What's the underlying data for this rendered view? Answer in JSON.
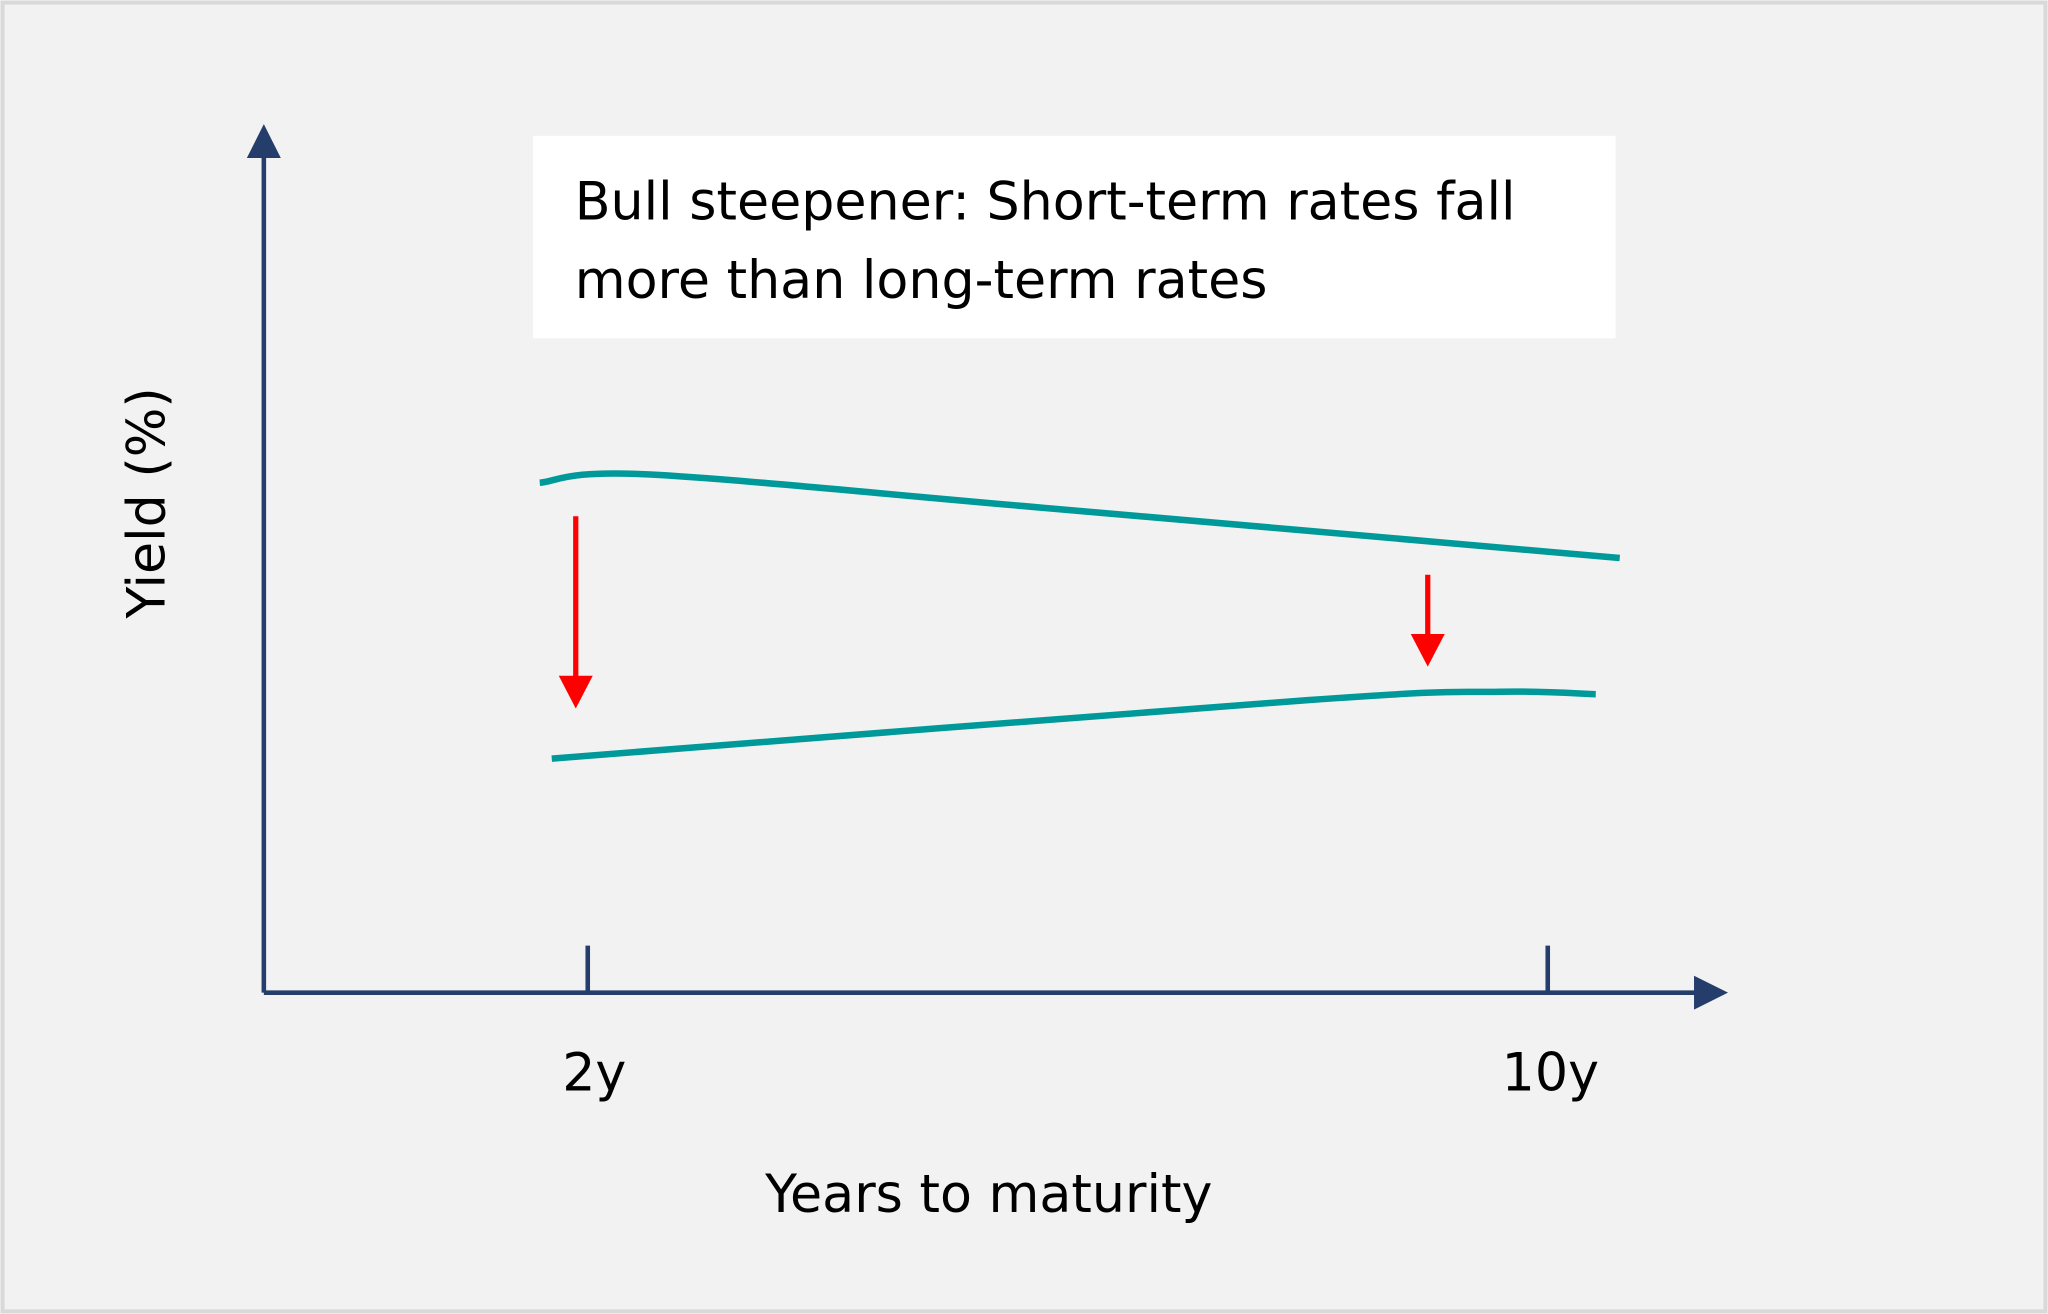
{
  "chart_data": {
    "type": "line",
    "annotation": {
      "line1": "Bull steepener: Short-term rates fall",
      "line2": "more than long-term rates"
    },
    "xlabel": "Years to maturity",
    "ylabel": "Yield (%)",
    "x_ticks": [
      {
        "value": 2,
        "label": "2y"
      },
      {
        "value": 10,
        "label": "10y"
      }
    ],
    "xlim": [
      -0.7,
      11.4
    ],
    "ylim": [
      0,
      10
    ],
    "grid": false,
    "series": [
      {
        "role": "before",
        "color": "#009999",
        "points": [
          [
            1.6,
            6.1
          ],
          [
            2.5,
            6.2
          ],
          [
            5.8,
            5.8
          ],
          [
            10.6,
            5.2
          ]
        ]
      },
      {
        "role": "after",
        "color": "#009999",
        "points": [
          [
            1.7,
            2.8
          ],
          [
            8.0,
            3.5
          ],
          [
            9.6,
            3.6
          ],
          [
            10.4,
            3.57
          ]
        ]
      }
    ],
    "shift_arrows": [
      {
        "x": 1.9,
        "from": 5.7,
        "to": 3.4,
        "color": "#ff0000"
      },
      {
        "x": 9.0,
        "from": 5.0,
        "to": 3.9,
        "color": "#ff0000"
      }
    ],
    "axis_color": "#253d6b"
  }
}
